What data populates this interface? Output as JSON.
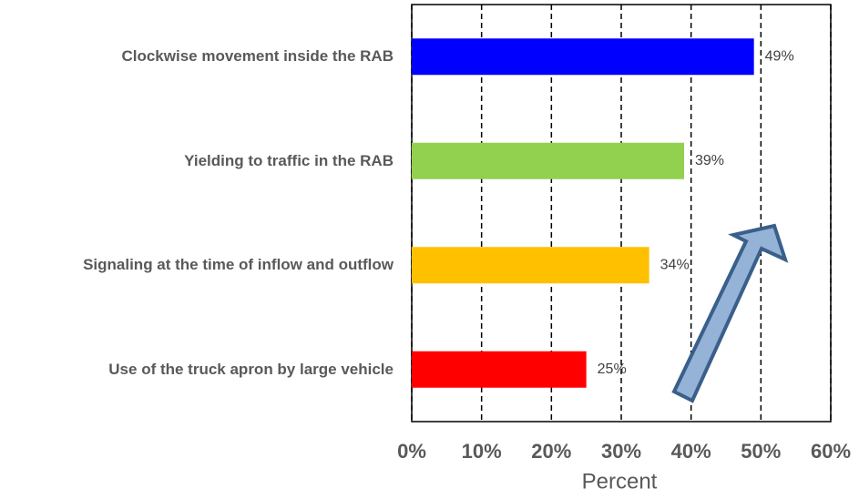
{
  "chart_data": {
    "type": "bar",
    "orientation": "horizontal",
    "categories": [
      "Clockwise movement inside the RAB",
      "Yielding to traffic in the RAB",
      "Signaling at the time of inflow and outflow",
      "Use of the truck apron by large vehicle"
    ],
    "values": [
      49,
      39,
      34,
      25
    ],
    "value_labels": [
      "49%",
      "39%",
      "34%",
      "25%"
    ],
    "colors": [
      "#0000ff",
      "#92d050",
      "#ffc000",
      "#ff0000"
    ],
    "xlabel": "Percent",
    "xlim": [
      0,
      60
    ],
    "xticks": [
      {
        "value": 0,
        "label": "0%"
      },
      {
        "value": 10,
        "label": "10%"
      },
      {
        "value": 20,
        "label": "20%"
      },
      {
        "value": 30,
        "label": "30%"
      },
      {
        "value": 40,
        "label": "40%"
      },
      {
        "value": 50,
        "label": "50%"
      },
      {
        "value": 60,
        "label": "60%"
      }
    ],
    "grid": true
  }
}
